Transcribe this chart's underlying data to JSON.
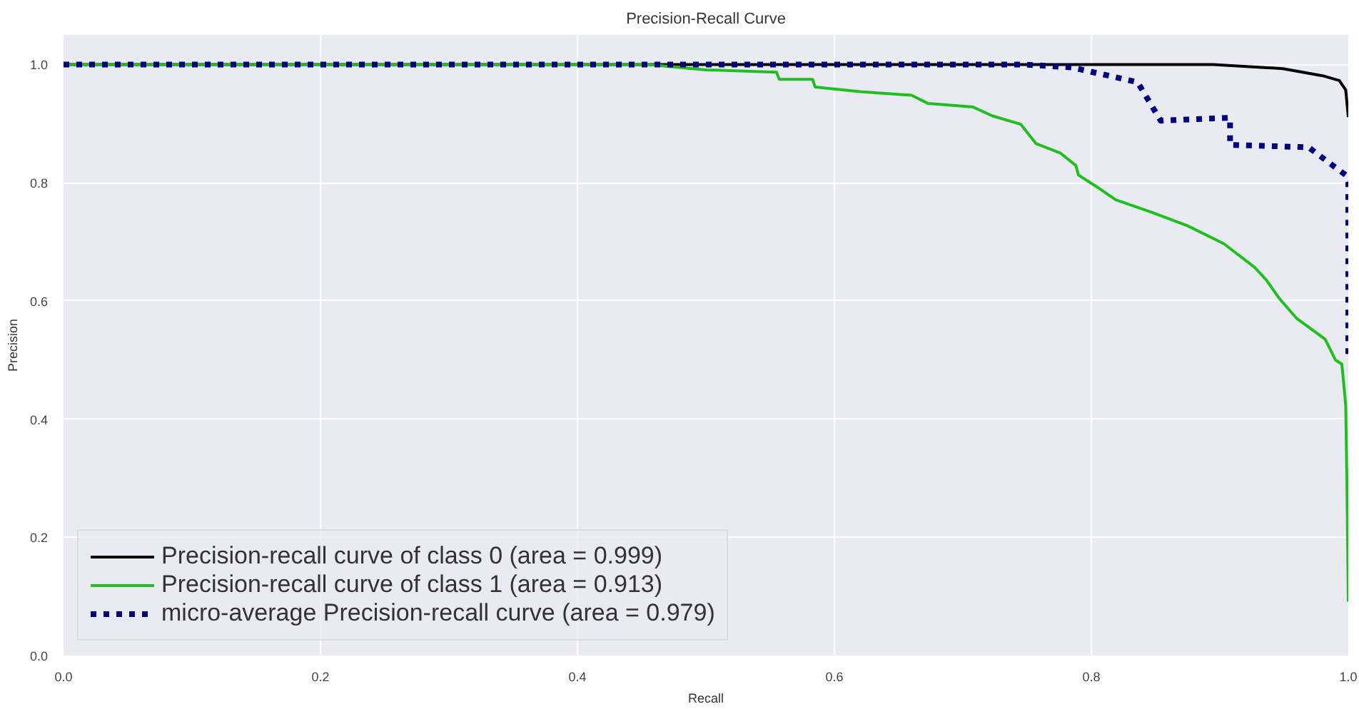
{
  "chart_data": {
    "type": "line",
    "title": "Precision-Recall Curve",
    "xlabel": "Recall",
    "ylabel": "Precision",
    "xlim": [
      0,
      1
    ],
    "ylim": [
      0,
      1.05
    ],
    "xticks": [
      {
        "value": 0,
        "label": "0.0"
      },
      0.2,
      0.4,
      0.6,
      0.8,
      {
        "value": 1,
        "label": "1.0"
      }
    ],
    "yticks": [
      {
        "value": 0,
        "label": "0.0"
      },
      0.2,
      0.4,
      0.6,
      0.8,
      {
        "value": 1,
        "label": "1.0"
      }
    ],
    "grid": true,
    "legend": "bottom left",
    "line_style": "solid",
    "series": [
      {
        "name": "Precision-recall curve of class 0 (area = 0.999)",
        "color": "#000000",
        "x": [
          0,
          0.895,
          0.949,
          0.98,
          0.993,
          0.998,
          1.0
        ],
        "values": [
          1.0,
          1.0,
          0.993,
          0.981,
          0.973,
          0.957,
          0.911
        ]
      },
      {
        "name": "Precision-recall curve of class 1 (area = 0.913)",
        "color": "#1fbf1f",
        "x": [
          0,
          0.455,
          0.5,
          0.555,
          0.557,
          0.583,
          0.585,
          0.62,
          0.66,
          0.673,
          0.708,
          0.723,
          0.745,
          0.757,
          0.776,
          0.788,
          0.79,
          0.805,
          0.819,
          0.847,
          0.875,
          0.903,
          0.927,
          0.936,
          0.946,
          0.96,
          0.982,
          0.99,
          0.995,
          0.998,
          0.999,
          1.0
        ],
        "values": [
          1.0,
          1.0,
          0.991,
          0.987,
          0.975,
          0.975,
          0.962,
          0.954,
          0.948,
          0.934,
          0.928,
          0.913,
          0.899,
          0.866,
          0.85,
          0.829,
          0.813,
          0.792,
          0.771,
          0.75,
          0.727,
          0.697,
          0.657,
          0.636,
          0.605,
          0.57,
          0.535,
          0.5,
          0.493,
          0.423,
          0.283,
          0.091
        ]
      },
      {
        "name": "micro-average Precision-recall curve (area = 0.979)",
        "color": "#000080",
        "line_style": "dotted",
        "x": [
          0,
          0.747,
          0.785,
          0.836,
          0.854,
          0.908,
          0.908,
          0.969,
          0.988,
          0.998,
          1.0,
          1.0
        ],
        "values": [
          1.0,
          1.0,
          0.995,
          0.97,
          0.905,
          0.91,
          0.864,
          0.86,
          0.829,
          0.813,
          0.8,
          0.505
        ]
      }
    ]
  }
}
